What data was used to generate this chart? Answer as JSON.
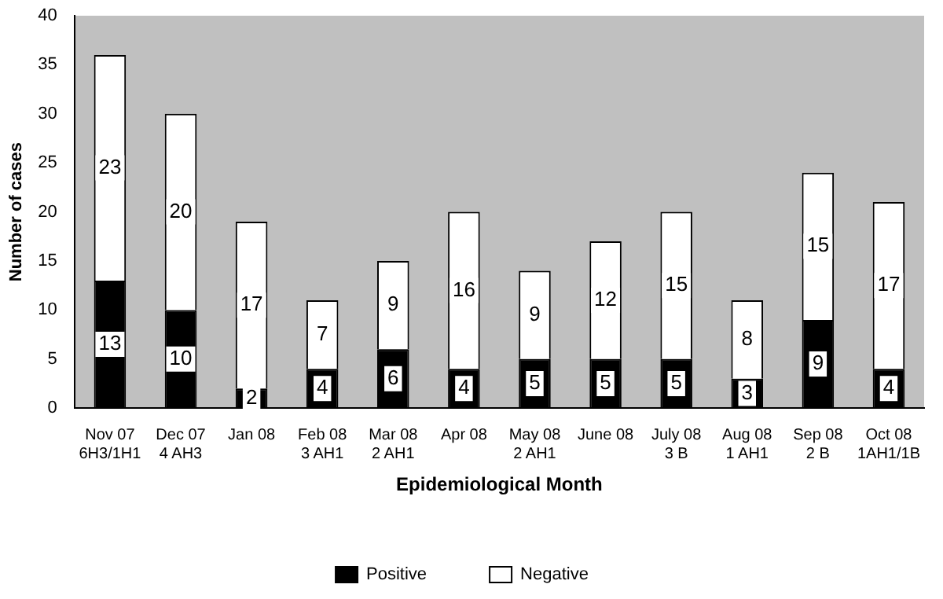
{
  "chart_data": {
    "type": "bar",
    "stacked": true,
    "xlabel": "Epidemiological Month",
    "ylabel": "Number of cases",
    "categories": [
      "Nov 07\n6H3/1H1",
      "Dec 07\n4 AH3",
      "Jan 08",
      "Feb 08\n3 AH1",
      "Mar 08\n2 AH1",
      "Apr 08",
      "May 08\n2 AH1",
      "June 08",
      "July 08\n3 B",
      "Aug 08\n1 AH1",
      "Sep 08\n2 B",
      "Oct 08\n1AH1/1B"
    ],
    "series": [
      {
        "name": "Positive",
        "color": "#000000",
        "values": [
          13,
          10,
          2,
          4,
          6,
          4,
          5,
          5,
          5,
          3,
          9,
          4
        ]
      },
      {
        "name": "Negative",
        "color": "#ffffff",
        "values": [
          23,
          20,
          17,
          7,
          9,
          16,
          9,
          12,
          15,
          8,
          15,
          17
        ]
      }
    ],
    "ylim": [
      0,
      40
    ],
    "yticks": [
      0,
      5,
      10,
      15,
      20,
      25,
      30,
      35,
      40
    ],
    "grid": false,
    "legend": "bottom",
    "data_labels": true
  }
}
